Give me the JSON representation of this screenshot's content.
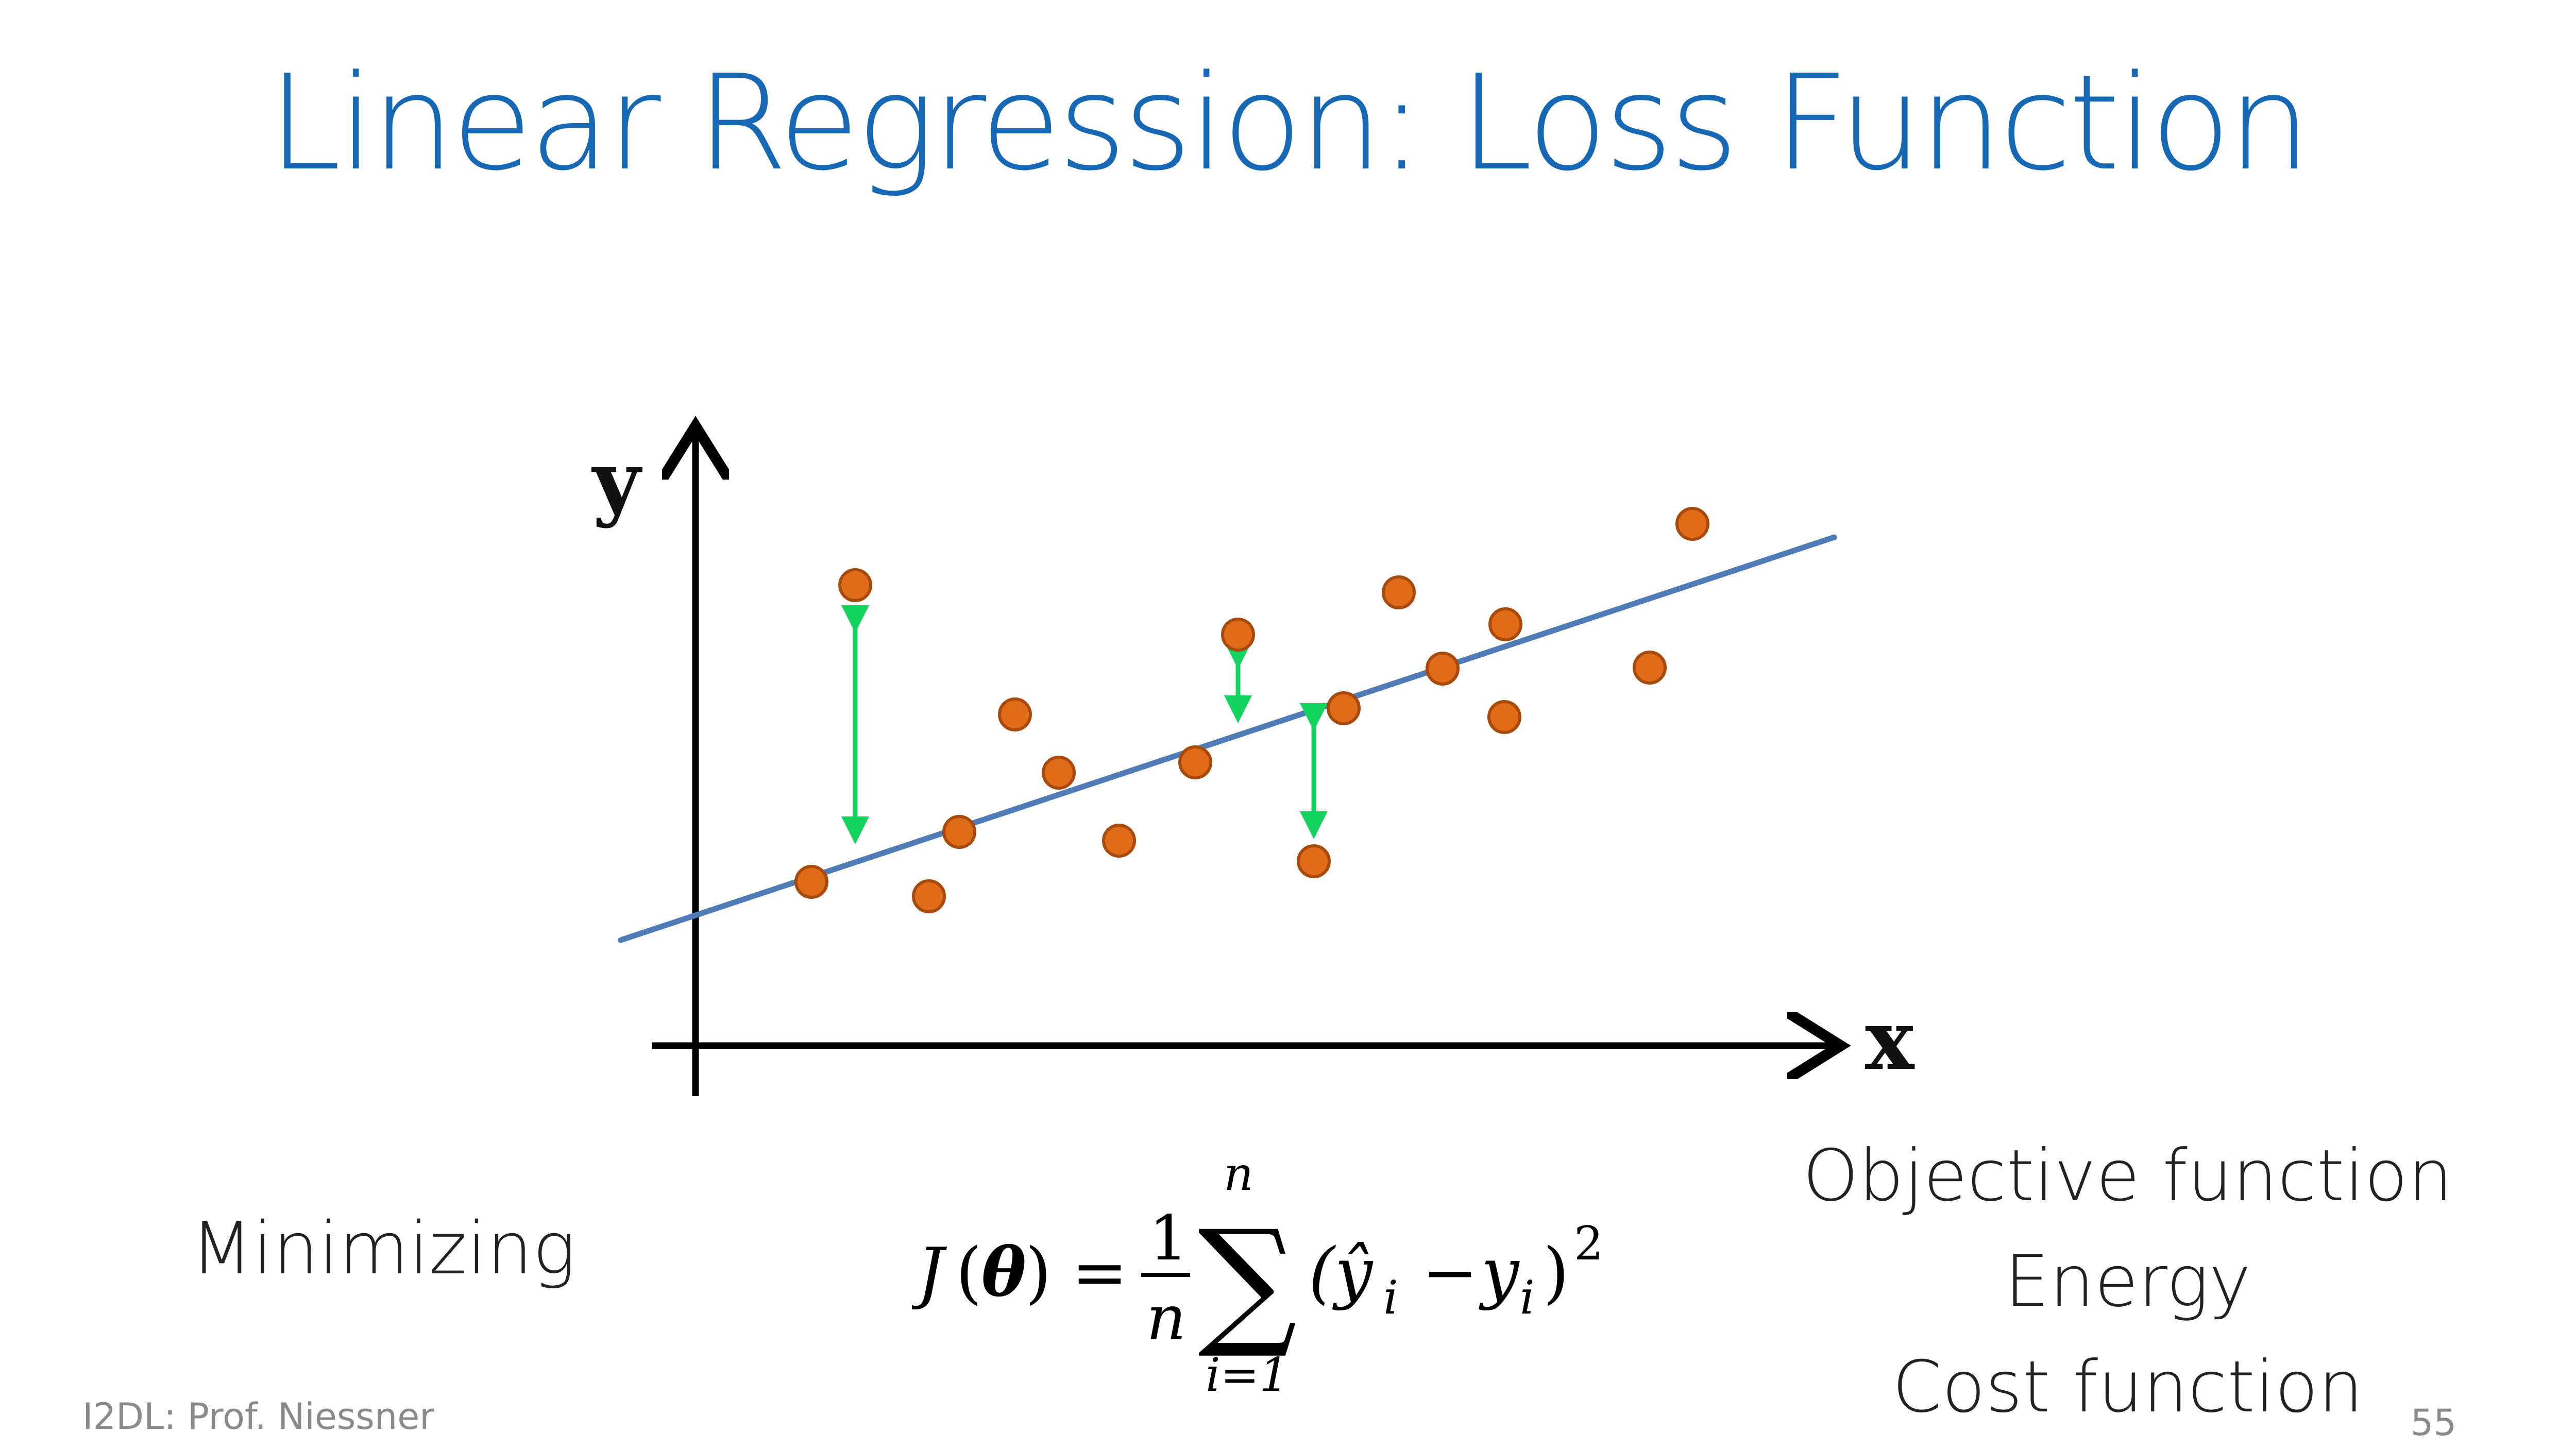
{
  "title": "Linear Regression: Loss Function",
  "diagram": {
    "y_axis_label": "y",
    "x_axis_label": "x",
    "colors": {
      "axis": "#000000",
      "regression_line": "#4f7bb6",
      "data_point_fill": "#e06c1a",
      "data_point_stroke": "#a84a0c",
      "residual_arrow": "#12d45f"
    }
  },
  "minimizing_label": "Minimizing",
  "formula": {
    "lhs_fn": "J",
    "lhs_param": "θ",
    "equals": "=",
    "frac_num": "1",
    "frac_den": "n",
    "sum_upper": "n",
    "sum_lower": "i=1",
    "sum_symbol": "∑",
    "term": "(ŷ",
    "sub_i": "i",
    "minus": "−",
    "y": "y",
    "sub_i2": "i",
    "close": ")",
    "exp": "2"
  },
  "alternative_names": [
    "Objective function",
    "Energy",
    "Cost function"
  ],
  "footer": {
    "course": "I2DL: Prof. Niessner",
    "page_number": "55"
  }
}
